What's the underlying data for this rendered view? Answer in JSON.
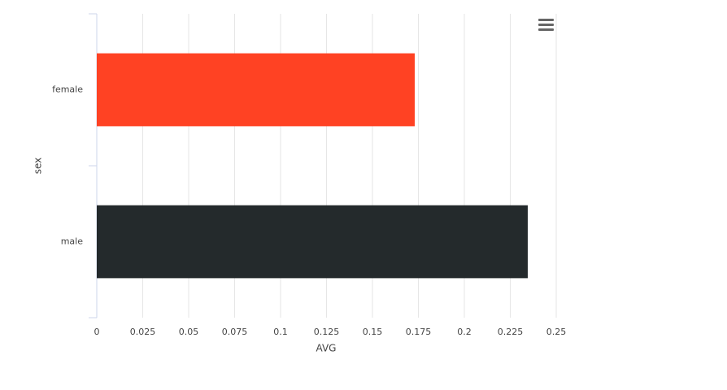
{
  "chart_data": {
    "type": "bar",
    "orientation": "horizontal",
    "x_label": "AVG",
    "y_label": "sex",
    "categories": [
      "female",
      "male"
    ],
    "values": [
      0.173,
      0.2345
    ],
    "colors": [
      "#ff4223",
      "#242a2c"
    ],
    "xlim": [
      0,
      0.25
    ],
    "xticks": [
      0,
      0.025,
      0.05,
      0.075,
      0.1,
      0.125,
      0.15,
      0.175,
      0.2,
      0.225,
      0.25
    ],
    "grid": true
  }
}
